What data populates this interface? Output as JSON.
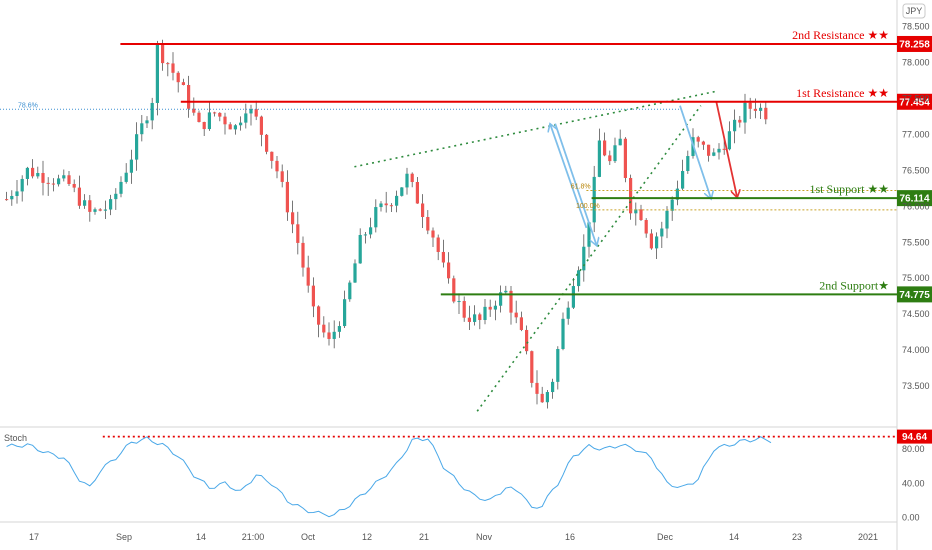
{
  "symbol": {
    "currency": "JPY"
  },
  "colors": {
    "up": "#26a69a",
    "down": "#ef5350",
    "wick": "#555555",
    "resistance": "#e60000",
    "support": "#2e7d12",
    "trend": "#2e8b3e",
    "arrow_blue": "#7fbfea",
    "arrow_red": "#e33333",
    "stoch": "#4aa8e8",
    "fib": "#c9a227"
  },
  "chart_data": [
    {
      "type": "candlestick",
      "title": "",
      "x_ticks": [
        "17",
        "Sep",
        "14",
        "21:00",
        "Oct",
        "12",
        "21",
        "Nov",
        "16",
        "Dec",
        "14",
        "23",
        "2021"
      ],
      "y_ticks": [
        73.5,
        74.0,
        74.5,
        75.0,
        75.5,
        76.0,
        76.5,
        77.0,
        77.5,
        78.0,
        78.5
      ],
      "ylim": [
        73.0,
        78.8
      ],
      "grid": false,
      "price_path": [
        [
          0,
          76.1
        ],
        [
          4,
          76.5
        ],
        [
          8,
          76.4
        ],
        [
          12,
          76.3
        ],
        [
          16,
          75.9
        ],
        [
          20,
          76.0
        ],
        [
          24,
          76.7
        ],
        [
          28,
          77.5
        ],
        [
          29,
          78.2
        ],
        [
          31,
          78.0
        ],
        [
          34,
          77.6
        ],
        [
          37,
          77.1
        ],
        [
          40,
          77.3
        ],
        [
          44,
          77.1
        ],
        [
          46,
          77.4
        ],
        [
          48,
          77.2
        ],
        [
          52,
          76.5
        ],
        [
          56,
          75.5
        ],
        [
          59,
          74.5
        ],
        [
          62,
          74.1
        ],
        [
          65,
          74.6
        ],
        [
          68,
          75.5
        ],
        [
          71,
          75.9
        ],
        [
          74,
          76.1
        ],
        [
          77,
          76.4
        ],
        [
          79,
          76.1
        ],
        [
          82,
          75.6
        ],
        [
          85,
          74.9
        ],
        [
          88,
          74.5
        ],
        [
          91,
          74.4
        ],
        [
          94,
          74.7
        ],
        [
          96,
          74.8
        ],
        [
          97,
          74.6
        ],
        [
          99,
          74.2
        ],
        [
          101,
          73.6
        ],
        [
          103,
          73.25
        ],
        [
          105,
          73.6
        ],
        [
          107,
          74.4
        ],
        [
          109,
          75.0
        ],
        [
          111,
          75.4
        ],
        [
          113,
          76.3
        ],
        [
          114,
          76.9
        ],
        [
          116,
          76.6
        ],
        [
          118,
          76.9
        ],
        [
          120,
          76.0
        ],
        [
          122,
          75.9
        ],
        [
          124,
          75.5
        ],
        [
          126,
          75.7
        ],
        [
          128,
          76.1
        ],
        [
          130,
          76.5
        ],
        [
          132,
          76.9
        ],
        [
          134,
          76.8
        ],
        [
          136,
          76.7
        ],
        [
          138,
          76.9
        ],
        [
          140,
          77.1
        ],
        [
          142,
          77.35
        ],
        [
          144,
          77.4
        ],
        [
          146,
          77.3
        ]
      ],
      "levels": [
        {
          "label": "2nd Resistance ★★",
          "value": 78.258,
          "tag": "78.258",
          "kind": "resistance"
        },
        {
          "label": "1st Resistance ★★",
          "value": 77.454,
          "tag": "77.454",
          "kind": "resistance"
        },
        {
          "label": "1st Support ★★",
          "value": 76.114,
          "tag": "76.114",
          "kind": "support"
        },
        {
          "label": "2nd Support★",
          "value": 74.775,
          "tag": "74.775",
          "kind": "support"
        }
      ],
      "fib_labels": [
        {
          "label": "78.6%",
          "value": 77.35
        },
        {
          "label": "61.8%",
          "value": 76.22
        },
        {
          "label": "100.0%",
          "value": 75.95
        }
      ]
    },
    {
      "type": "line",
      "title": "Stoch",
      "y_ticks": [
        0.0,
        40.0,
        80.0
      ],
      "ylim": [
        -5,
        100
      ],
      "threshold": {
        "value": 94.64,
        "tag": "94.64"
      },
      "stoch_path": [
        [
          0,
          83
        ],
        [
          4,
          85
        ],
        [
          8,
          75
        ],
        [
          11,
          70
        ],
        [
          14,
          45
        ],
        [
          16,
          35
        ],
        [
          18,
          55
        ],
        [
          21,
          70
        ],
        [
          24,
          88
        ],
        [
          27,
          92
        ],
        [
          30,
          85
        ],
        [
          33,
          72
        ],
        [
          36,
          50
        ],
        [
          39,
          35
        ],
        [
          42,
          40
        ],
        [
          45,
          30
        ],
        [
          48,
          50
        ],
        [
          51,
          40
        ],
        [
          54,
          20
        ],
        [
          57,
          10
        ],
        [
          60,
          5
        ],
        [
          63,
          3
        ],
        [
          66,
          15
        ],
        [
          69,
          30
        ],
        [
          72,
          45
        ],
        [
          75,
          62
        ],
        [
          78,
          90
        ],
        [
          81,
          93
        ],
        [
          84,
          60
        ],
        [
          87,
          40
        ],
        [
          90,
          25
        ],
        [
          93,
          20
        ],
        [
          96,
          35
        ],
        [
          99,
          30
        ],
        [
          101,
          10
        ],
        [
          103,
          15
        ],
        [
          106,
          40
        ],
        [
          109,
          72
        ],
        [
          112,
          83
        ],
        [
          115,
          80
        ],
        [
          118,
          85
        ],
        [
          121,
          80
        ],
        [
          124,
          70
        ],
        [
          127,
          40
        ],
        [
          130,
          35
        ],
        [
          133,
          45
        ],
        [
          136,
          80
        ],
        [
          139,
          85
        ],
        [
          142,
          90
        ],
        [
          145,
          92
        ],
        [
          147,
          90
        ]
      ]
    }
  ]
}
